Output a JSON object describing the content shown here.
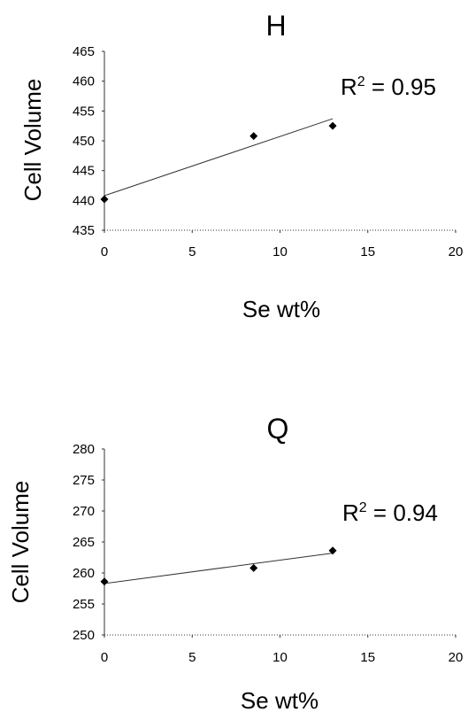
{
  "chart_data": [
    {
      "type": "scatter",
      "title": "H",
      "xlabel": "Se wt%",
      "ylabel": "Cell Volume",
      "xlim": [
        0,
        20
      ],
      "ylim": [
        435,
        465
      ],
      "xticks": [
        "0",
        "5",
        "10",
        "15",
        "20"
      ],
      "yticks": [
        "435",
        "440",
        "445",
        "450",
        "455",
        "460",
        "465"
      ],
      "x": [
        0,
        8.5,
        13
      ],
      "y": [
        440.2,
        450.8,
        452.5
      ],
      "trendline": {
        "type": "linear",
        "start": [
          0,
          440.8
        ],
        "end": [
          13,
          453.7
        ]
      },
      "annotation": {
        "text": "R",
        "sup": "2",
        "rest": " = 0.95"
      },
      "grid": false,
      "legend": "none"
    },
    {
      "type": "scatter",
      "title": "Q",
      "xlabel": "Se wt%",
      "ylabel": "Cell Volume",
      "xlim": [
        0,
        20
      ],
      "ylim": [
        250,
        280
      ],
      "xticks": [
        "0",
        "5",
        "10",
        "15",
        "20"
      ],
      "yticks": [
        "250",
        "255",
        "260",
        "265",
        "270",
        "275",
        "280"
      ],
      "x": [
        0,
        8.5,
        13
      ],
      "y": [
        258.6,
        260.8,
        263.6
      ],
      "trendline": {
        "type": "linear",
        "start": [
          0,
          258.3
        ],
        "end": [
          13,
          263.2
        ]
      },
      "annotation": {
        "text": "R",
        "sup": "2",
        "rest": " = 0.94"
      },
      "grid": false,
      "legend": "none"
    }
  ]
}
